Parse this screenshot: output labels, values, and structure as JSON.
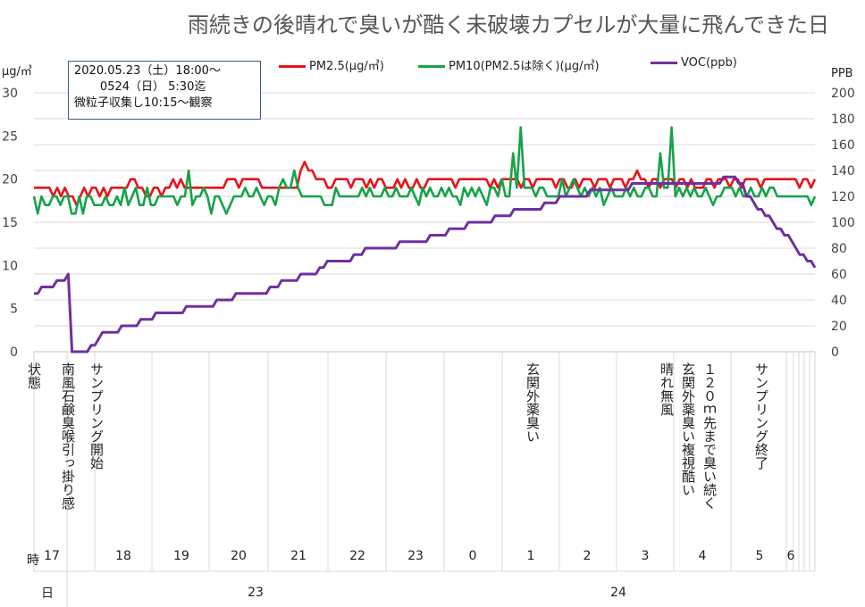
{
  "chart_data": {
    "type": "line",
    "title": "雨続きの後晴れで臭いが酷く未破壊カプセルが大量に飛んできた日",
    "ylabel_left": "μg/㎥",
    "ylabel_right": "PPB",
    "ylim_left": [
      0,
      30
    ],
    "ylim_right": [
      0,
      200
    ],
    "yticks_left": [
      "0",
      "5",
      "10",
      "15",
      "20",
      "25",
      "30"
    ],
    "yticks_right": [
      "0",
      "20",
      "40",
      "60",
      "80",
      "100",
      "120",
      "140",
      "160",
      "180",
      "200"
    ],
    "grid": true,
    "legend_position": "top",
    "annotation_box": [
      "2020.05.23（土）18:00～",
      "       0524（日） 5:30迄",
      "微粒子収集し10:15～観察"
    ],
    "series": [
      {
        "name": "PM2.5(μg/㎥)",
        "axis": "left",
        "color": "#e8141c",
        "values": [
          19,
          19,
          19,
          19,
          19,
          18,
          19,
          18,
          19,
          18,
          18,
          17,
          18,
          19,
          18,
          19,
          19,
          18,
          19,
          18,
          19,
          19,
          19,
          19,
          19,
          20,
          20,
          19,
          19,
          18,
          18,
          19,
          19,
          18,
          19,
          19,
          20,
          19,
          20,
          19,
          19,
          19,
          19,
          19,
          19,
          19,
          19,
          19,
          19,
          19,
          20,
          20,
          20,
          19,
          20,
          20,
          20,
          20,
          20,
          19,
          19,
          19,
          19,
          19,
          19,
          19,
          19,
          19,
          19,
          21,
          22,
          21,
          21,
          20,
          20,
          20,
          19,
          19,
          20,
          20,
          20,
          20,
          19,
          20,
          20,
          20,
          19,
          20,
          19,
          20,
          20,
          19,
          19,
          19,
          20,
          19,
          20,
          19,
          19,
          20,
          19,
          19,
          20,
          20,
          20,
          20,
          20,
          20,
          20,
          19,
          20,
          20,
          20,
          20,
          20,
          20,
          20,
          20,
          19,
          20,
          19,
          20,
          20,
          20,
          20,
          20,
          19,
          20,
          20,
          19,
          20,
          20,
          20,
          20,
          20,
          19,
          20,
          20,
          19,
          19,
          20,
          19,
          20,
          20,
          20,
          19,
          20,
          20,
          20,
          19,
          20,
          20,
          20,
          19,
          20,
          20,
          21,
          20,
          20,
          19,
          20,
          20,
          19,
          20,
          20,
          20,
          19,
          20,
          20,
          19,
          20,
          19,
          19,
          19,
          20,
          20,
          19,
          20,
          20,
          20,
          19,
          20,
          20,
          19,
          20,
          20,
          20,
          20,
          19,
          20,
          20,
          20,
          20,
          20,
          20,
          20,
          20,
          20,
          19,
          20,
          20,
          19,
          20
        ]
      },
      {
        "name": "PM10(PM2.5は除く)(μg/㎥)",
        "axis": "left",
        "color": "#17a34a",
        "values": [
          18,
          16,
          18,
          17,
          17,
          18,
          18,
          17,
          18,
          18,
          16,
          16,
          18,
          16,
          18,
          18,
          17,
          17,
          17,
          18,
          17,
          17,
          18,
          17,
          19,
          17,
          18,
          19,
          17,
          17,
          19,
          17,
          17,
          18,
          18,
          18,
          18,
          18,
          17,
          18,
          18,
          21,
          17,
          18,
          18,
          19,
          18,
          16,
          18,
          18,
          17,
          16,
          17,
          18,
          18,
          18,
          19,
          18,
          18,
          19,
          18,
          17,
          18,
          18,
          17,
          19,
          20,
          19,
          19,
          21,
          19,
          18,
          18,
          18,
          18,
          18,
          18,
          17,
          17,
          17,
          19,
          18,
          18,
          18,
          18,
          18,
          18,
          19,
          18,
          19,
          18,
          18,
          18,
          19,
          18,
          18,
          19,
          18,
          18,
          18,
          19,
          18,
          17,
          19,
          18,
          19,
          18,
          18,
          19,
          18,
          19,
          18,
          18,
          17,
          19,
          18,
          19,
          18,
          19,
          18,
          17,
          19,
          19,
          18,
          20,
          18,
          18,
          23,
          19,
          26,
          19,
          19,
          19,
          18,
          19,
          19,
          18,
          18,
          18,
          18,
          20,
          18,
          19,
          20,
          19,
          18,
          19,
          18,
          19,
          18,
          19,
          17,
          18,
          19,
          18,
          18,
          18,
          19,
          18,
          19,
          18,
          18,
          19,
          19,
          18,
          18,
          23,
          19,
          19,
          26,
          18,
          19,
          18,
          19,
          18,
          19,
          18,
          18,
          19,
          18,
          17,
          18,
          18,
          19,
          19,
          19,
          18,
          19,
          18,
          18,
          19,
          18,
          18,
          19,
          18,
          19,
          19,
          18,
          18,
          18,
          18,
          18,
          18,
          18,
          18,
          18,
          17,
          18
        ]
      },
      {
        "name": "VOC(ppb)",
        "axis": "right",
        "color": "#7030a0",
        "values": [
          45,
          45,
          50,
          50,
          50,
          50,
          55,
          55,
          55,
          60,
          0,
          0,
          0,
          0,
          0,
          5,
          5,
          10,
          15,
          15,
          15,
          15,
          15,
          20,
          20,
          20,
          20,
          20,
          25,
          25,
          25,
          25,
          30,
          30,
          30,
          30,
          30,
          30,
          30,
          30,
          35,
          35,
          35,
          35,
          35,
          35,
          35,
          35,
          40,
          40,
          40,
          40,
          40,
          45,
          45,
          45,
          45,
          45,
          45,
          45,
          45,
          45,
          50,
          50,
          50,
          55,
          55,
          55,
          55,
          55,
          60,
          60,
          60,
          60,
          60,
          65,
          65,
          70,
          70,
          70,
          70,
          70,
          70,
          70,
          75,
          75,
          75,
          80,
          80,
          80,
          80,
          80,
          80,
          80,
          80,
          80,
          85,
          85,
          85,
          85,
          85,
          85,
          85,
          85,
          90,
          90,
          90,
          90,
          90,
          95,
          95,
          95,
          95,
          95,
          100,
          100,
          100,
          100,
          100,
          100,
          100,
          105,
          105,
          105,
          105,
          105,
          110,
          110,
          110,
          110,
          110,
          110,
          110,
          110,
          115,
          115,
          115,
          115,
          120,
          120,
          120,
          120,
          120,
          120,
          120,
          120,
          125,
          125,
          125,
          125,
          125,
          125,
          125,
          125,
          125,
          125,
          125,
          130,
          130,
          130,
          130,
          130,
          130,
          130,
          130,
          130,
          130,
          130,
          130,
          130,
          130,
          130,
          130,
          130,
          130,
          130,
          130,
          130,
          130,
          130,
          130,
          135,
          135,
          135,
          135,
          130,
          130,
          120,
          120,
          115,
          110,
          110,
          105,
          105,
          100,
          95,
          95,
          90,
          90,
          85,
          80,
          75,
          75,
          70,
          70,
          65
        ]
      }
    ],
    "status_label": "状態",
    "event_notes": [
      "南風石鹸臭喉引っ掛り感",
      "サンプリング開始",
      "玄関外薬臭い",
      "晴れ無風",
      "１２０ｍ先まで臭い続く",
      "玄関外薬臭い複視酷い",
      "サンプリング終了"
    ],
    "hour_label": "時",
    "hours": [
      "17",
      "18",
      "19",
      "20",
      "21",
      "22",
      "23",
      "0",
      "1",
      "2",
      "3",
      "4",
      "5",
      "6"
    ],
    "day_label": "日",
    "days": [
      "23",
      "24"
    ]
  }
}
